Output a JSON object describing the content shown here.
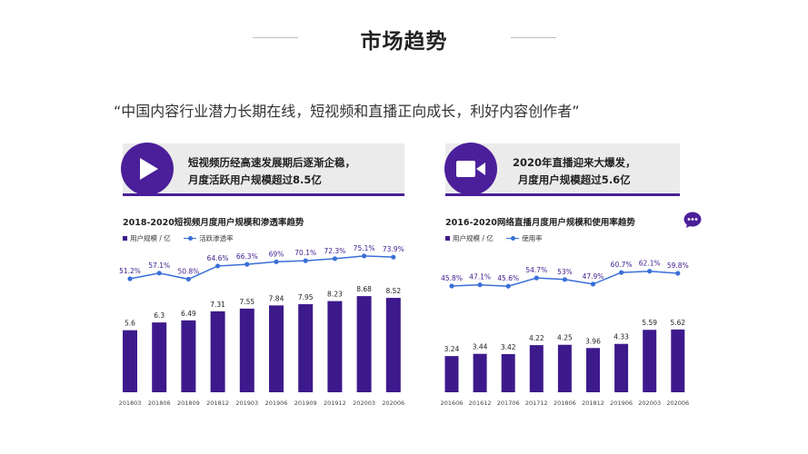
{
  "page": {
    "title": "市场趋势",
    "quote": "“中国内容行业潜力长期在线，短视频和直播正向成长，利好内容创作者”"
  },
  "colors": {
    "bar": "#3d1a8c",
    "line": "#3a6fd8",
    "accent": "#4b1f9a"
  },
  "left_banner": {
    "icon": "play-icon",
    "line1": "短视频历经高速发展期后逐渐企稳，",
    "line2": "月度活跃用户规模超过8.5亿"
  },
  "right_banner": {
    "icon": "video-camera-icon",
    "line1": "2020年直播迎来大爆发，",
    "line2": "月度用户规模超过5.6亿"
  },
  "chat_icon": "chat-bubble-icon",
  "chart_data": [
    {
      "type": "bar",
      "title": "2018-2020短视频月度用户规模和渗透率趋势",
      "categories": [
        "201803",
        "201806",
        "201809",
        "201812",
        "201903",
        "201906",
        "201909",
        "201912",
        "202003",
        "202006"
      ],
      "series": [
        {
          "name": "用户规模 / 亿",
          "type": "bar",
          "values": [
            5.6,
            6.3,
            6.49,
            7.31,
            7.55,
            7.84,
            7.95,
            8.23,
            8.68,
            8.52
          ],
          "labels": [
            "5.6",
            "6.3",
            "6.49",
            "7.31",
            "7.55",
            "7.84",
            "7.95",
            "8.23",
            "8.68",
            "8.52"
          ]
        },
        {
          "name": "活跃渗透率",
          "type": "line",
          "values": [
            51.2,
            57.1,
            50.8,
            64.6,
            66.3,
            69,
            70.1,
            72.3,
            75.1,
            73.9
          ],
          "labels": [
            "51.2%",
            "57.1%",
            "50.8%",
            "64.6%",
            "66.3%",
            "69%",
            "70.1%",
            "72.3%",
            "75.1%",
            "73.9%"
          ]
        }
      ],
      "legend": "top-left",
      "grid": false
    },
    {
      "type": "bar",
      "title": "2016-2020网络直播月度用户规模和使用率趋势",
      "categories": [
        "201606",
        "201612",
        "201706",
        "201712",
        "201806",
        "201812",
        "201906",
        "202003",
        "202006"
      ],
      "series": [
        {
          "name": "用户规模 / 亿",
          "type": "bar",
          "values": [
            3.24,
            3.44,
            3.42,
            4.22,
            4.25,
            3.96,
            4.33,
            5.59,
            5.62
          ],
          "labels": [
            "3.24",
            "3.44",
            "3.42",
            "4.22",
            "4.25",
            "3.96",
            "4.33",
            "5.59",
            "5.62"
          ]
        },
        {
          "name": "使用率",
          "type": "line",
          "values": [
            45.8,
            47.1,
            45.6,
            54.7,
            53,
            47.9,
            60.7,
            62.1,
            59.8
          ],
          "labels": [
            "45.8%",
            "47.1%",
            "45.6%",
            "54.7%",
            "53%",
            "47.9%",
            "60.7%",
            "62.1%",
            "59.8%"
          ]
        }
      ],
      "legend": "top-left",
      "grid": false
    }
  ]
}
